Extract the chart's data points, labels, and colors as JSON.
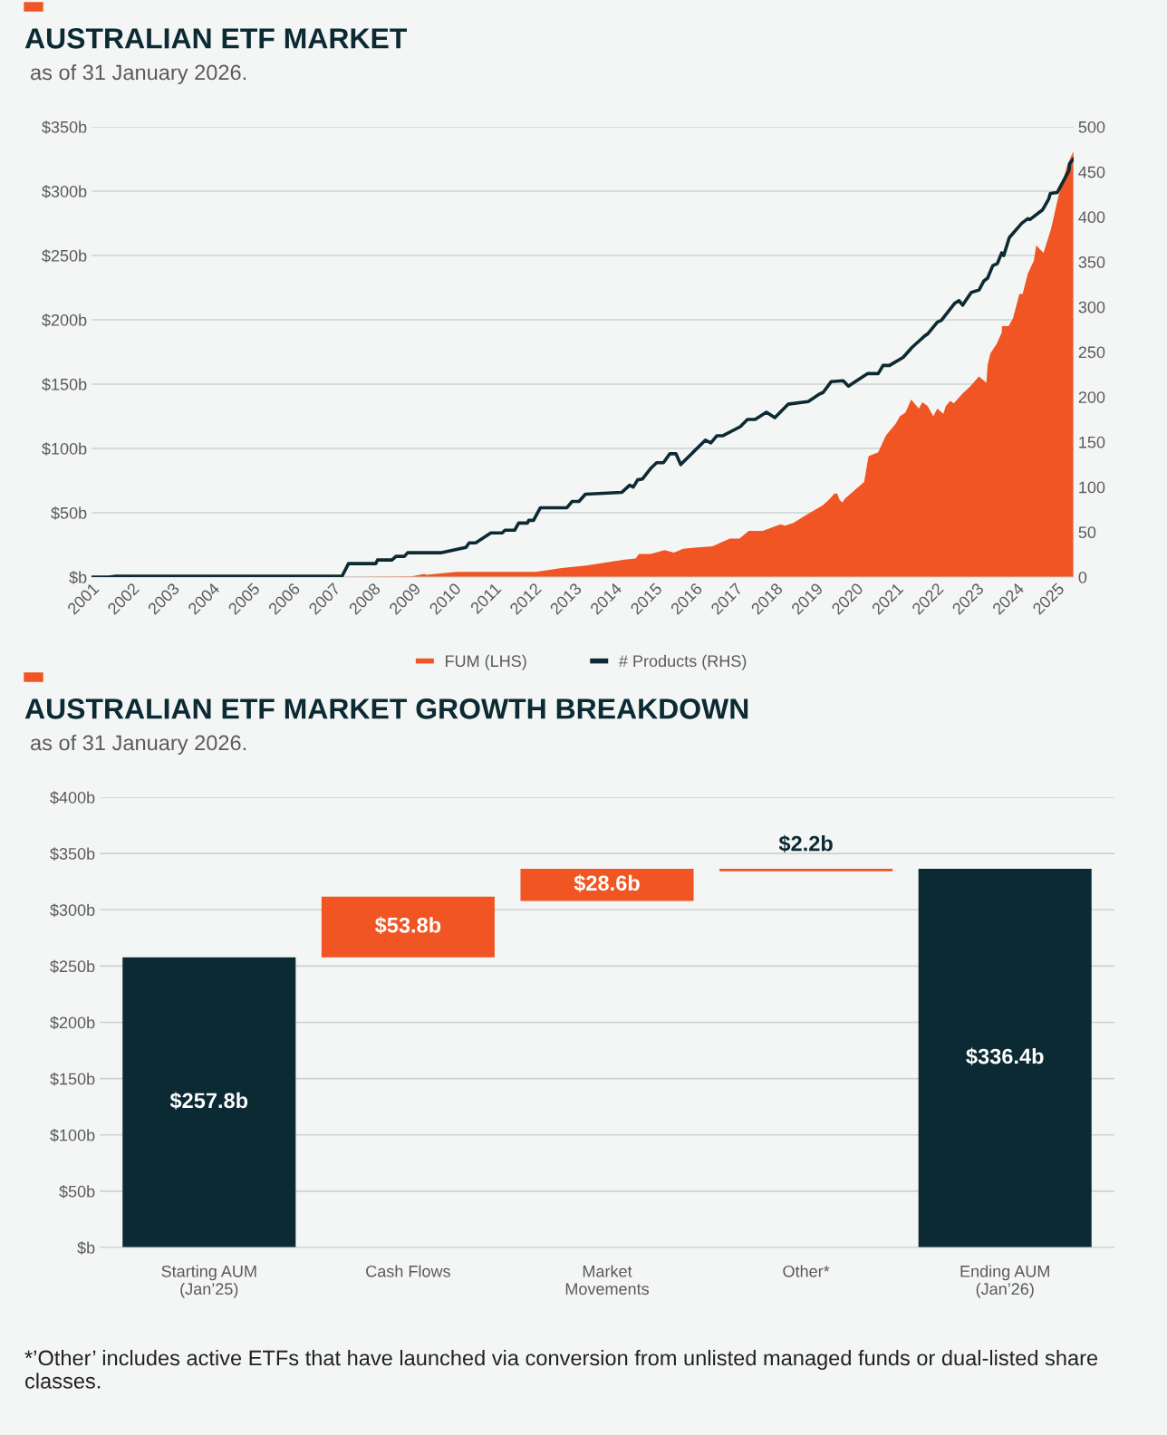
{
  "chart_data": [
    {
      "type": "area",
      "title": "AUSTRALIAN ETF MARKET",
      "subtitle": "as of 31 January 2026.",
      "xlim": [
        2001,
        2025.42
      ],
      "xticks": [
        2001,
        2002,
        2003,
        2004,
        2005,
        2006,
        2007,
        2008,
        2009,
        2010,
        2011,
        2012,
        2013,
        2014,
        2015,
        2016,
        2017,
        2018,
        2019,
        2020,
        2021,
        2022,
        2023,
        2024,
        2025
      ],
      "ylim": [
        0,
        350
      ],
      "yticks": [
        {
          "value": 0,
          "label": "$b"
        },
        {
          "value": 50,
          "label": "$50b"
        },
        {
          "value": 100,
          "label": "$100b"
        },
        {
          "value": 150,
          "label": "$150b"
        },
        {
          "value": 200,
          "label": "$200b"
        },
        {
          "value": 250,
          "label": "$250b"
        },
        {
          "value": 300,
          "label": "$300b"
        },
        {
          "value": 350,
          "label": "$350b"
        }
      ],
      "y2lim": [
        0,
        500
      ],
      "y2ticks": [
        0,
        50,
        100,
        150,
        200,
        250,
        300,
        350,
        400,
        450,
        500
      ],
      "grid": "y",
      "legend": "bottom",
      "series": [
        {
          "name": "FUM (LHS)",
          "type": "area",
          "color": "#f05523",
          "x": [
            2007.23,
            2008.95,
            2009.28,
            2009.32,
            2010.08,
            2012.05,
            2012.69,
            2013.3,
            2014.25,
            2014.53,
            2014.61,
            2014.9,
            2015.25,
            2015.48,
            2015.71,
            2016.07,
            2016.44,
            2016.87,
            2017.11,
            2017.34,
            2017.69,
            2018.13,
            2018.24,
            2018.45,
            2018.76,
            2019.19,
            2019.36,
            2019.47,
            2019.54,
            2019.6,
            2019.67,
            2019.73,
            2020.21,
            2020.32,
            2020.56,
            2020.75,
            2020.99,
            2021.1,
            2021.24,
            2021.38,
            2021.57,
            2021.66,
            2021.79,
            2021.93,
            2022.03,
            2022.18,
            2022.24,
            2022.35,
            2022.44,
            2022.64,
            2022.87,
            2023.06,
            2023.25,
            2023.28,
            2023.35,
            2023.5,
            2023.63,
            2023.64,
            2023.8,
            2023.91,
            2024.07,
            2024.15,
            2024.28,
            2024.43,
            2024.49,
            2024.67,
            2024.86,
            2025.04,
            2025.26,
            2025.41
          ],
          "values": [
            0,
            0.5,
            2.5,
            1.8,
            4,
            4,
            7,
            9,
            13.5,
            14.5,
            18,
            18,
            21,
            19,
            22,
            23,
            24,
            30,
            30,
            36,
            36,
            41,
            40,
            42,
            48,
            56,
            61,
            65,
            65,
            60,
            58,
            61,
            74,
            94,
            97,
            110,
            119,
            125,
            128,
            138,
            131,
            136,
            133,
            125,
            131,
            127,
            133,
            137,
            135,
            142,
            149,
            156,
            151,
            165,
            174,
            181,
            190,
            195,
            195,
            201,
            220,
            220,
            236,
            246,
            258,
            252,
            271,
            296,
            320,
            331
          ]
        },
        {
          "name": "# Products (RHS)",
          "type": "line",
          "axis": "y2",
          "color": "#0c2a33",
          "x": [
            2001.0,
            2001.43,
            2001.6,
            2007.23,
            2007.39,
            2008.07,
            2008.11,
            2008.47,
            2008.57,
            2008.78,
            2008.86,
            2009.68,
            2010.31,
            2010.39,
            2010.55,
            2010.93,
            2011.21,
            2011.28,
            2011.52,
            2011.62,
            2011.84,
            2011.87,
            2011.99,
            2012.16,
            2012.82,
            2012.95,
            2013.12,
            2013.28,
            2014.18,
            2014.38,
            2014.47,
            2014.58,
            2014.7,
            2014.91,
            2015.05,
            2015.22,
            2015.38,
            2015.53,
            2015.65,
            2016.26,
            2016.4,
            2016.55,
            2016.7,
            2017.13,
            2017.31,
            2017.5,
            2017.78,
            2017.99,
            2018.32,
            2018.82,
            2019.09,
            2019.19,
            2019.39,
            2019.69,
            2019.82,
            2020.3,
            2020.56,
            2020.68,
            2020.84,
            2021.18,
            2021.4,
            2021.72,
            2021.79,
            2022.03,
            2022.13,
            2022.46,
            2022.57,
            2022.66,
            2022.87,
            2023.07,
            2023.19,
            2023.28,
            2023.41,
            2023.52,
            2023.63,
            2023.68,
            2023.82,
            2024.13,
            2024.28,
            2024.33,
            2024.65,
            2024.8,
            2024.84,
            2025.01,
            2025.3,
            2025.32,
            2025.41
          ],
          "values": [
            0,
            0,
            1,
            1,
            15,
            15,
            19,
            19,
            23,
            23,
            27,
            27,
            33,
            38,
            38,
            49,
            49,
            52,
            52,
            60,
            60,
            63,
            63,
            77,
            77,
            84,
            84,
            92,
            94,
            102,
            100,
            108,
            109,
            121,
            127,
            127,
            137,
            137,
            125,
            152,
            149,
            157,
            157,
            167,
            175,
            175,
            183,
            177,
            192,
            195,
            203,
            205,
            217,
            218,
            212,
            226,
            226,
            235,
            235,
            244,
            255,
            268,
            270,
            283,
            285,
            304,
            307,
            302,
            316,
            319,
            329,
            332,
            346,
            348,
            360,
            357,
            377,
            393,
            398,
            397,
            408,
            420,
            426,
            427,
            451,
            459,
            464
          ]
        }
      ]
    },
    {
      "type": "bar",
      "title": "AUSTRALIAN ETF MARKET GROWTH BREAKDOWN",
      "subtitle": "as of 31 January 2026.",
      "categories": [
        "Starting AUM\n(Jan’25)",
        "Cash Flows",
        "Market\nMovements",
        "Other*",
        "Ending AUM\n(Jan’26)"
      ],
      "values": [
        257.8,
        53.8,
        28.6,
        2.2,
        336.4
      ],
      "base": [
        0,
        257.8,
        307.8,
        334.2,
        0
      ],
      "colors": [
        "#0c2a33",
        "#f05523",
        "#f05523",
        "#f05523",
        "#0c2a33"
      ],
      "value_labels": [
        "$257.8b",
        "$53.8b",
        "$28.6b",
        "$2.2b",
        "$336.4b"
      ],
      "ylim": [
        0,
        400
      ],
      "yticks": [
        {
          "value": 0,
          "label": "$b"
        },
        {
          "value": 50,
          "label": "$50b"
        },
        {
          "value": 100,
          "label": "$100b"
        },
        {
          "value": 150,
          "label": "$150b"
        },
        {
          "value": 200,
          "label": "$200b"
        },
        {
          "value": 250,
          "label": "$250b"
        },
        {
          "value": 300,
          "label": "$300b"
        },
        {
          "value": 350,
          "label": "$350b"
        },
        {
          "value": 400,
          "label": "$400b"
        }
      ],
      "grid": "y",
      "annotations": [
        "*’Other’ includes active ETFs that have launched via conversion from unlisted managed funds or dual-listed share classes."
      ]
    }
  ]
}
